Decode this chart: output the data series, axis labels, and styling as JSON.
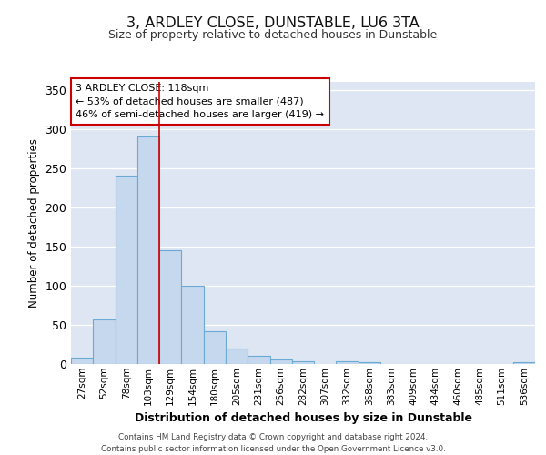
{
  "title": "3, ARDLEY CLOSE, DUNSTABLE, LU6 3TA",
  "subtitle": "Size of property relative to detached houses in Dunstable",
  "xlabel": "Distribution of detached houses by size in Dunstable",
  "ylabel": "Number of detached properties",
  "categories": [
    "27sqm",
    "52sqm",
    "78sqm",
    "103sqm",
    "129sqm",
    "154sqm",
    "180sqm",
    "205sqm",
    "231sqm",
    "256sqm",
    "282sqm",
    "307sqm",
    "332sqm",
    "358sqm",
    "383sqm",
    "409sqm",
    "434sqm",
    "460sqm",
    "485sqm",
    "511sqm",
    "536sqm"
  ],
  "values": [
    8,
    57,
    240,
    290,
    145,
    100,
    42,
    20,
    10,
    6,
    4,
    0,
    4,
    2,
    0,
    0,
    0,
    0,
    0,
    0,
    2
  ],
  "bar_color": "#c5d8ee",
  "bar_edge_color": "#6aaad4",
  "property_bar_index": 3,
  "property_vline_color": "#cc0000",
  "annotation_line1": "3 ARDLEY CLOSE: 118sqm",
  "annotation_line2": "← 53% of detached houses are smaller (487)",
  "annotation_line3": "46% of semi-detached houses are larger (419) →",
  "annotation_box_facecolor": "#ffffff",
  "annotation_box_edgecolor": "#cc0000",
  "ylim": [
    0,
    360
  ],
  "yticks": [
    0,
    50,
    100,
    150,
    200,
    250,
    300,
    350
  ],
  "plot_bg_color": "#dde6f2",
  "fig_bg_color": "#ffffff",
  "grid_color": "#ffffff",
  "footer_line1": "Contains HM Land Registry data © Crown copyright and database right 2024.",
  "footer_line2": "Contains public sector information licensed under the Open Government Licence v3.0."
}
